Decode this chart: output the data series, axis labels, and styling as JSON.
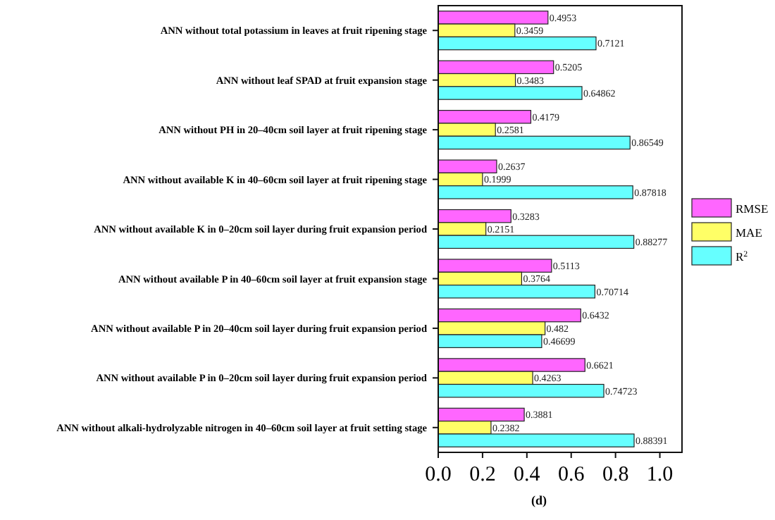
{
  "chart_data": {
    "type": "bar",
    "orientation": "horizontal",
    "categories": [
      "ANN without total potassium in leaves at fruit ripening stage",
      "ANN without leaf SPAD at fruit expansion stage",
      "ANN without PH in 20–40cm soil layer at fruit ripening stage",
      "ANN without available K in 40–60cm soil layer at fruit ripening stage",
      "ANN without available K in 0–20cm soil layer during fruit expansion period",
      "ANN without available P in 40–60cm soil layer at fruit expansion stage",
      "ANN without available P in 20–40cm soil layer during fruit expansion period",
      "ANN without available P in 0–20cm soil layer during fruit expansion period",
      "ANN without alkali-hydrolyzable nitrogen in 40–60cm soil layer at fruit setting stage"
    ],
    "series": [
      {
        "name": "RMSE",
        "color": "#ff66ff",
        "values": [
          0.4953,
          0.5205,
          0.4179,
          0.2637,
          0.3283,
          0.5113,
          0.6432,
          0.6621,
          0.3881
        ]
      },
      {
        "name": "MAE",
        "color": "#ffff66",
        "values": [
          0.3459,
          0.3483,
          0.2581,
          0.1999,
          0.2151,
          0.3764,
          0.482,
          0.4263,
          0.2382
        ]
      },
      {
        "name": "R$^{2}$",
        "color": "#66ffff",
        "values": [
          0.7121,
          0.64862,
          0.86549,
          0.87818,
          0.88277,
          0.70714,
          0.46699,
          0.74723,
          0.88391
        ]
      }
    ],
    "xlim": [
      0,
      1.1
    ],
    "xticks": [
      {
        "value": 0,
        "label": "0.0"
      },
      0.2,
      0.4,
      0.6,
      0.8,
      {
        "value": 1,
        "label": "1.0"
      }
    ],
    "data_labels": true,
    "legend": "right",
    "annotations": [
      "(d)"
    ]
  }
}
